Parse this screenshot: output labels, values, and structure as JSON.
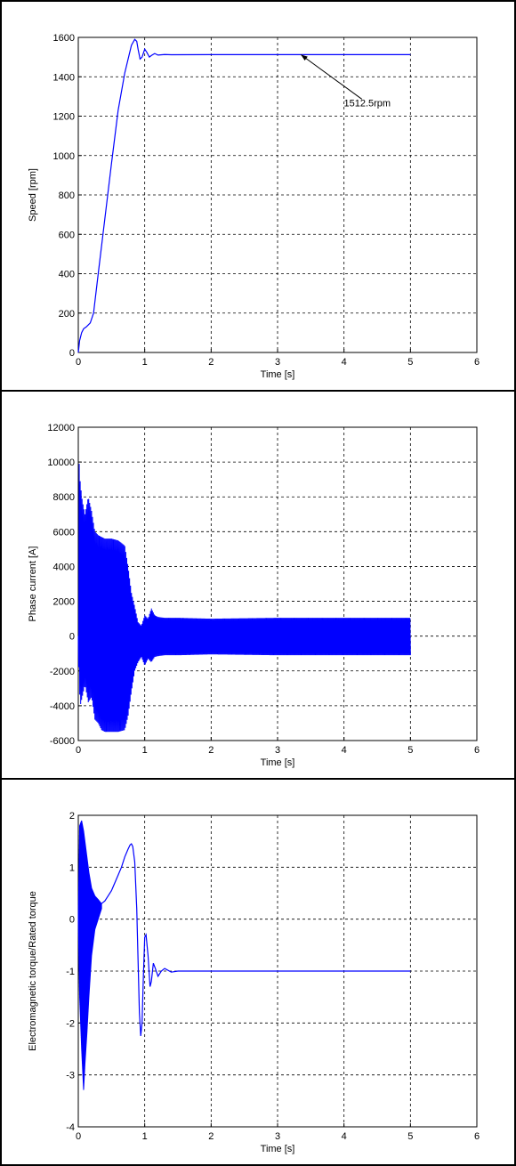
{
  "chart_data": [
    {
      "type": "line",
      "ylabel": "Speed [rpm]",
      "xlabel": "Time [s]",
      "xlim": [
        0,
        6
      ],
      "ylim": [
        0,
        1600
      ],
      "xticks": [
        0,
        1,
        2,
        3,
        4,
        5,
        6
      ],
      "yticks": [
        0,
        200,
        400,
        600,
        800,
        1000,
        1200,
        1400,
        1600
      ],
      "grid": true,
      "line_color": "#0000ff",
      "series": [
        {
          "x": [
            0,
            0.02,
            0.05,
            0.08,
            0.12,
            0.15,
            0.18,
            0.2,
            0.23,
            0.3,
            0.4,
            0.5,
            0.6,
            0.7,
            0.8,
            0.85,
            0.88,
            0.9,
            0.93,
            0.96,
            1.0,
            1.03,
            1.07,
            1.1,
            1.15,
            1.2,
            1.3,
            1.4,
            2.0,
            3.0,
            4.0,
            5.0
          ],
          "y": [
            0,
            60,
            100,
            120,
            130,
            140,
            150,
            170,
            200,
            400,
            680,
            960,
            1230,
            1420,
            1560,
            1590,
            1580,
            1540,
            1490,
            1500,
            1540,
            1525,
            1500,
            1508,
            1518,
            1510,
            1513,
            1512,
            1512.5,
            1512.5,
            1512.5,
            1512.5
          ]
        }
      ],
      "annotations": [
        {
          "text": "1512.5rpm",
          "x": 4.35,
          "y": 1250,
          "arrow_to": [
            3.35,
            1512.5
          ]
        }
      ]
    },
    {
      "type": "line",
      "ylabel": "Phase current [A]",
      "xlabel": "Time [s]",
      "xlim": [
        0,
        6
      ],
      "ylim": [
        -6000,
        12000
      ],
      "xticks": [
        0,
        1,
        2,
        3,
        4,
        5,
        6
      ],
      "yticks": [
        -6000,
        -4000,
        -2000,
        0,
        2000,
        4000,
        6000,
        8000,
        10000,
        12000
      ],
      "grid": true,
      "line_color": "#0000ff",
      "envelope": {
        "x": [
          0,
          0.01,
          0.03,
          0.06,
          0.1,
          0.15,
          0.2,
          0.25,
          0.3,
          0.35,
          0.4,
          0.5,
          0.6,
          0.7,
          0.75,
          0.8,
          0.85,
          0.9,
          0.95,
          1.0,
          1.05,
          1.1,
          1.15,
          1.2,
          1.3,
          1.5,
          2.0,
          3.0,
          4.0,
          5.0
        ],
        "upper": [
          0,
          10200,
          8800,
          7800,
          7000,
          8000,
          7200,
          6000,
          5800,
          5700,
          5600,
          5600,
          5500,
          5200,
          4000,
          2500,
          1700,
          800,
          600,
          1200,
          1000,
          1600,
          1200,
          1100,
          1050,
          1050,
          1000,
          1050,
          1050,
          1050
        ],
        "lower": [
          0,
          -2500,
          -4000,
          -3500,
          -2800,
          -3800,
          -3500,
          -4800,
          -5000,
          -5400,
          -5500,
          -5500,
          -5500,
          -5400,
          -4600,
          -3200,
          -2000,
          -1500,
          -1200,
          -1700,
          -1300,
          -1500,
          -1200,
          -1150,
          -1100,
          -1100,
          -1050,
          -1100,
          -1100,
          -1100
        ]
      }
    },
    {
      "type": "line",
      "ylabel": "Electromagnetic torque/Rated torque",
      "xlabel": "Time [s]",
      "xlim": [
        0,
        6
      ],
      "ylim": [
        -4,
        2
      ],
      "xticks": [
        0,
        1,
        2,
        3,
        4,
        5,
        6
      ],
      "yticks": [
        -4,
        -3,
        -2,
        -1,
        0,
        1,
        2
      ],
      "grid": true,
      "line_color": "#0000ff",
      "envelope": {
        "x": [
          0,
          0.02,
          0.05,
          0.08,
          0.1,
          0.13,
          0.16,
          0.2,
          0.25,
          0.3,
          0.35
        ],
        "upper": [
          0,
          1.8,
          1.9,
          1.7,
          1.5,
          1.2,
          0.9,
          0.6,
          0.45,
          0.38,
          0.3
        ],
        "lower": [
          0,
          -1.5,
          -2.5,
          -3.3,
          -2.8,
          -2.2,
          -1.5,
          -0.7,
          -0.2,
          0.0,
          0.2
        ]
      },
      "series": [
        {
          "x": [
            0.35,
            0.4,
            0.45,
            0.5,
            0.55,
            0.6,
            0.65,
            0.7,
            0.75,
            0.78,
            0.8,
            0.82,
            0.85,
            0.88,
            0.9,
            0.92,
            0.94,
            0.96,
            0.98,
            1.0,
            1.02,
            1.05,
            1.08,
            1.1,
            1.13,
            1.16,
            1.2,
            1.25,
            1.3,
            1.4,
            1.5,
            2.0,
            3.0,
            4.0,
            5.0
          ],
          "y": [
            0.3,
            0.35,
            0.45,
            0.55,
            0.7,
            0.85,
            1.0,
            1.2,
            1.35,
            1.43,
            1.45,
            1.4,
            1.1,
            0.2,
            -0.8,
            -1.8,
            -2.25,
            -2.0,
            -1.1,
            -0.35,
            -0.3,
            -0.7,
            -1.3,
            -1.2,
            -0.85,
            -0.95,
            -1.1,
            -1.0,
            -0.95,
            -1.02,
            -1.0,
            -1.0,
            -1.0,
            -1.0,
            -1.0
          ]
        }
      ]
    }
  ]
}
